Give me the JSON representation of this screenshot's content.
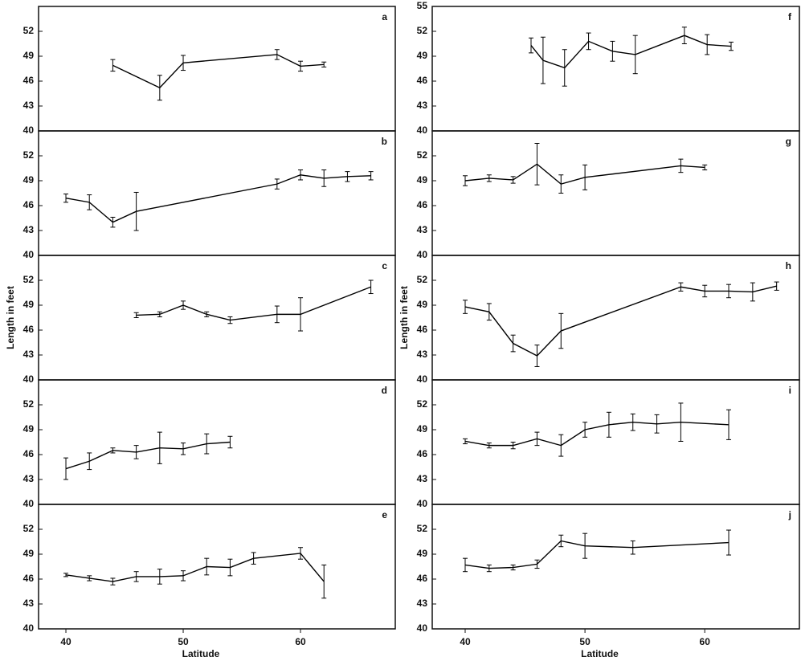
{
  "chart_data": [
    {
      "type": "line",
      "title": "a",
      "color": "#000000",
      "xlim": [
        37.67,
        68.08
      ],
      "ylim": [
        40,
        55
      ],
      "yticks": [
        40,
        43,
        46,
        49,
        52
      ],
      "x": [
        44,
        48,
        50,
        58,
        60,
        62
      ],
      "values": [
        47.9,
        45.2,
        48.2,
        49.2,
        47.8,
        48.0
      ],
      "errors": [
        0.7,
        1.5,
        0.9,
        0.6,
        0.6,
        0.3
      ]
    },
    {
      "type": "line",
      "title": "b",
      "color": "#000000",
      "xlim": [
        37.67,
        68.08
      ],
      "ylim": [
        40,
        55
      ],
      "yticks": [
        40,
        43,
        46,
        49,
        52
      ],
      "x": [
        40,
        42,
        44,
        46,
        58,
        60,
        62,
        64,
        66
      ],
      "values": [
        46.9,
        46.4,
        44.0,
        45.3,
        48.6,
        49.7,
        49.3,
        49.5,
        49.6
      ],
      "errors": [
        0.5,
        0.9,
        0.6,
        2.3,
        0.6,
        0.6,
        1.0,
        0.6,
        0.5
      ]
    },
    {
      "type": "line",
      "title": "c",
      "color": "#000000",
      "xlim": [
        37.67,
        68.08
      ],
      "ylim": [
        40,
        55
      ],
      "yticks": [
        40,
        43,
        46,
        49,
        52
      ],
      "ylabel": "Length in feet",
      "x": [
        46,
        48,
        50,
        52,
        54,
        58,
        60,
        66
      ],
      "values": [
        47.8,
        47.9,
        49.0,
        47.9,
        47.2,
        47.9,
        47.9,
        51.2
      ],
      "errors": [
        0.3,
        0.3,
        0.5,
        0.3,
        0.4,
        1.0,
        2.0,
        0.8
      ]
    },
    {
      "type": "line",
      "title": "d",
      "color": "#000000",
      "xlim": [
        37.67,
        68.08
      ],
      "ylim": [
        40,
        55
      ],
      "yticks": [
        40,
        43,
        46,
        49,
        52
      ],
      "x": [
        40,
        42,
        44,
        46,
        48,
        50,
        52,
        54
      ],
      "values": [
        44.3,
        45.2,
        46.5,
        46.3,
        46.8,
        46.7,
        47.3,
        47.5
      ],
      "errors": [
        1.3,
        1.0,
        0.3,
        0.8,
        1.9,
        0.7,
        1.2,
        0.7
      ]
    },
    {
      "type": "line",
      "title": "e",
      "color": "#000000",
      "xlim": [
        37.67,
        68.08
      ],
      "ylim": [
        40,
        55
      ],
      "yticks": [
        40,
        43,
        46,
        49,
        52
      ],
      "xticks": [
        40,
        50,
        60
      ],
      "xlabel": "Latitude",
      "x": [
        40,
        42,
        44,
        46,
        48,
        50,
        52,
        54,
        56,
        60,
        62
      ],
      "values": [
        46.5,
        46.1,
        45.7,
        46.3,
        46.3,
        46.4,
        47.5,
        47.4,
        48.5,
        49.1,
        45.7
      ],
      "errors": [
        0.2,
        0.3,
        0.4,
        0.6,
        0.9,
        0.6,
        1.0,
        1.0,
        0.7,
        0.7,
        2.0
      ]
    },
    {
      "type": "line",
      "title": "f",
      "color": "#000000",
      "xlim": [
        37.25,
        67.9
      ],
      "ylim": [
        40,
        55
      ],
      "yticks": [
        40,
        43,
        46,
        49,
        52,
        55
      ],
      "x": [
        45.5,
        46.5,
        48.3,
        50.3,
        52.3,
        54.2,
        58.3,
        60.2,
        62.2
      ],
      "values": [
        50.3,
        48.5,
        47.6,
        50.8,
        49.6,
        49.2,
        51.5,
        50.4,
        50.2
      ],
      "errors": [
        0.9,
        2.8,
        2.2,
        1.0,
        1.2,
        2.3,
        1.0,
        1.2,
        0.5
      ]
    },
    {
      "type": "line",
      "title": "g",
      "color": "#000000",
      "xlim": [
        37.25,
        67.9
      ],
      "ylim": [
        40,
        55
      ],
      "yticks": [
        40,
        43,
        46,
        49,
        52
      ],
      "x": [
        40,
        42,
        44,
        46,
        48,
        50,
        58,
        60
      ],
      "values": [
        49.0,
        49.3,
        49.1,
        51.0,
        48.6,
        49.4,
        50.8,
        50.6
      ],
      "errors": [
        0.6,
        0.4,
        0.4,
        2.5,
        1.1,
        1.5,
        0.8,
        0.3
      ]
    },
    {
      "type": "line",
      "title": "h",
      "color": "#000000",
      "xlim": [
        37.25,
        67.9
      ],
      "ylim": [
        40,
        55
      ],
      "yticks": [
        40,
        43,
        46,
        49,
        52
      ],
      "ylabel": "Length in feet",
      "x": [
        40,
        42,
        44,
        46,
        48,
        58,
        60,
        62,
        64,
        66
      ],
      "values": [
        48.8,
        48.2,
        44.4,
        42.9,
        45.9,
        51.2,
        50.7,
        50.7,
        50.6,
        51.3
      ],
      "errors": [
        0.8,
        1.0,
        1.0,
        1.3,
        2.1,
        0.5,
        0.7,
        0.8,
        1.1,
        0.5
      ]
    },
    {
      "type": "line",
      "title": "i",
      "color": "#000000",
      "xlim": [
        37.25,
        67.9
      ],
      "ylim": [
        40,
        55
      ],
      "yticks": [
        40,
        43,
        46,
        49,
        52
      ],
      "x": [
        40,
        42,
        44,
        46,
        48,
        50,
        52,
        54,
        56,
        58,
        62
      ],
      "values": [
        47.6,
        47.1,
        47.1,
        47.9,
        47.1,
        49.0,
        49.6,
        49.9,
        49.7,
        49.9,
        49.6
      ],
      "errors": [
        0.3,
        0.3,
        0.4,
        0.8,
        1.3,
        0.9,
        1.5,
        1.0,
        1.1,
        2.3,
        1.8
      ]
    },
    {
      "type": "line",
      "title": "j",
      "color": "#000000",
      "xlim": [
        37.25,
        67.9
      ],
      "ylim": [
        40,
        55
      ],
      "yticks": [
        40,
        43,
        46,
        49,
        52
      ],
      "xticks": [
        40,
        50,
        60
      ],
      "xlabel": "Latitude",
      "x": [
        40,
        42,
        44,
        46,
        48,
        50,
        54,
        62
      ],
      "values": [
        47.7,
        47.3,
        47.4,
        47.8,
        50.6,
        50.0,
        49.8,
        50.4
      ],
      "errors": [
        0.8,
        0.4,
        0.3,
        0.5,
        0.7,
        1.5,
        0.8,
        1.5
      ]
    }
  ]
}
